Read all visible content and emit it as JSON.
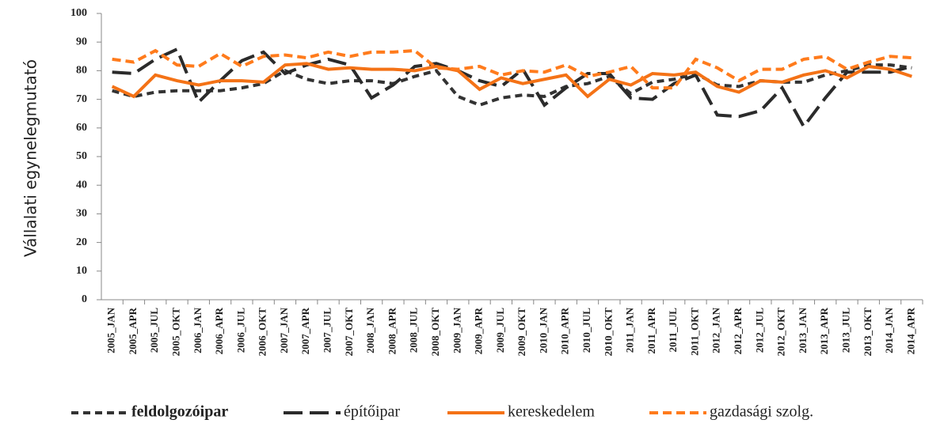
{
  "chart_data": {
    "type": "line",
    "ylabel": "Vállalati egynelegmutató",
    "categories": [
      "2005_JAN",
      "2005_APR",
      "2005_JUL",
      "2005_OKT",
      "2006_JAN",
      "2006_APR",
      "2006_JUL",
      "2006_OKT",
      "2007_JAN",
      "2007_APR",
      "2007_JUL",
      "2007_OKT",
      "2008_JAN",
      "2008_APR",
      "2008_JUL",
      "2008_OKT",
      "2009_JAN",
      "2009_APR",
      "2009_JUL",
      "2009_OKT",
      "2010_JAN",
      "2010_APR",
      "2010_JUL",
      "2010_OKT",
      "2011_JAN",
      "2011_APR",
      "2011_JUL",
      "2011_OKT",
      "2012_JAN",
      "2012_APR",
      "2012_JUL",
      "2012_OKT",
      "2013_JAN",
      "2013_APR",
      "2013_JUL",
      "2013_OKT",
      "2014_JAN",
      "2014_APR"
    ],
    "series": [
      {
        "name": "feldolgozóipar",
        "color": "#333333",
        "dash": "9,6",
        "values": [
          73,
          71,
          72.5,
          73,
          73,
          73,
          74,
          75.5,
          80,
          77,
          75.5,
          76.5,
          76.5,
          75.5,
          78,
          80,
          71,
          68,
          70.5,
          71.5,
          71,
          74.5,
          75.5,
          78,
          72,
          76,
          77,
          79,
          75,
          74.5,
          76.5,
          76,
          76,
          78.5,
          80,
          82,
          82,
          81
        ]
      },
      {
        "name": "építőipar",
        "color": "#2b2b2b",
        "dash": "24,9",
        "values": [
          79.5,
          79,
          84,
          87.5,
          69,
          76.5,
          83.5,
          86.5,
          79,
          82,
          84,
          82,
          70.5,
          75,
          81.5,
          82.5,
          80,
          76.5,
          74.5,
          80.5,
          68,
          74,
          79,
          79,
          70.5,
          70,
          75.5,
          78.5,
          64.5,
          64,
          66,
          74,
          60.5,
          70.5,
          79.5,
          79.5,
          79.5,
          81.5
        ]
      },
      {
        "name": "kereskedelem",
        "color": "#f47216",
        "dash": "none",
        "values": [
          74.5,
          71,
          78.5,
          76.5,
          75,
          76.5,
          76.5,
          76,
          82,
          82.5,
          80.5,
          81,
          80.5,
          80.5,
          80,
          81.5,
          80,
          73.5,
          77.5,
          75.5,
          77,
          78.5,
          71,
          77,
          75,
          79,
          78.5,
          79.5,
          74.5,
          72.5,
          76.5,
          76,
          78.5,
          80,
          77.5,
          81.5,
          80.5,
          78
        ]
      },
      {
        "name": "gazdasági szolg.",
        "color": "#ff7b1c",
        "dash": "11,6",
        "values": [
          84,
          83,
          87,
          82,
          81.5,
          86,
          81.5,
          85,
          85.5,
          84.5,
          86.5,
          85,
          86.5,
          86.5,
          87,
          81,
          80.5,
          81.5,
          78.5,
          80,
          79.5,
          82,
          78,
          79.5,
          81.5,
          74,
          74,
          84,
          81,
          76.5,
          80.5,
          80.5,
          84,
          85,
          80.5,
          83,
          85,
          84.5
        ]
      }
    ],
    "ylim": [
      0,
      100
    ],
    "yticks": [
      0,
      10,
      20,
      30,
      40,
      50,
      60,
      70,
      80,
      90,
      100
    ],
    "grid": false
  }
}
